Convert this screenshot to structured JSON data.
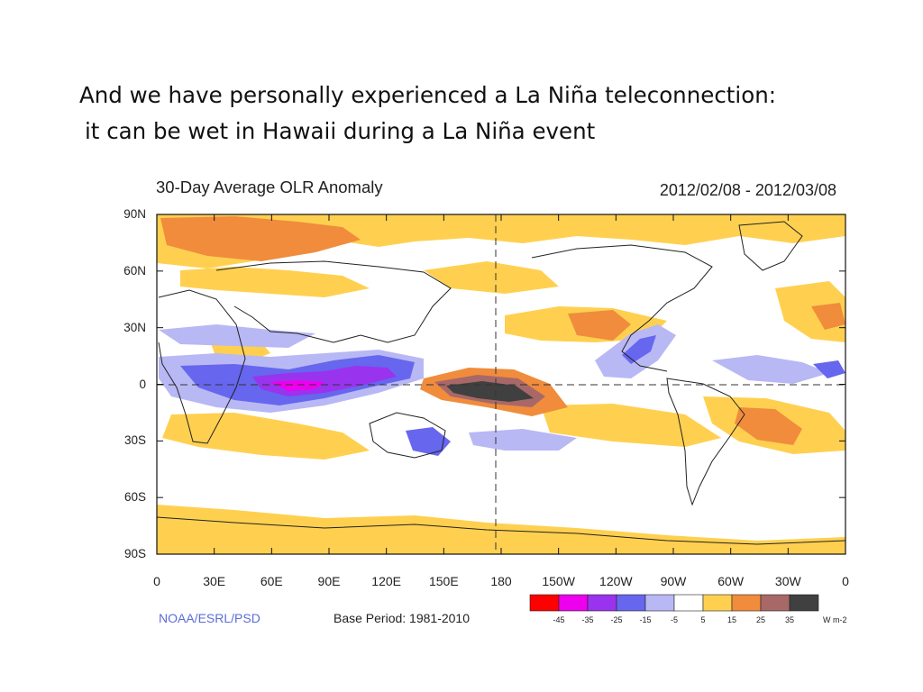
{
  "slide": {
    "title_line1": "And we have personally experienced a La Niña teleconnection:",
    "title_line2": "it can be wet in Hawaii during a La Niña event"
  },
  "figure": {
    "title": "30-Day Average OLR Anomaly",
    "date_range": "2012/02/08 - 2012/03/08",
    "credit": "NOAA/ESRL/PSD",
    "base_period": "Base Period: 1981-2010",
    "lat_labels": [
      "90N",
      "60N",
      "30N",
      "0",
      "30S",
      "60S",
      "90S"
    ],
    "lon_labels": [
      "0",
      "30E",
      "60E",
      "90E",
      "120E",
      "150E",
      "180",
      "150W",
      "120W",
      "90W",
      "60W",
      "30W",
      "0"
    ]
  },
  "legend": {
    "unit": "W m-2",
    "tick_labels": [
      "-45",
      "-35",
      "-25",
      "-15",
      "-5",
      "5",
      "15",
      "25",
      "35"
    ],
    "colors": [
      "#ff0000",
      "#ee00ee",
      "#9933ee",
      "#6666ee",
      "#b8b8f5",
      "#ffffff",
      "#ffd050",
      "#f08c3c",
      "#a86868",
      "#404040"
    ]
  }
}
